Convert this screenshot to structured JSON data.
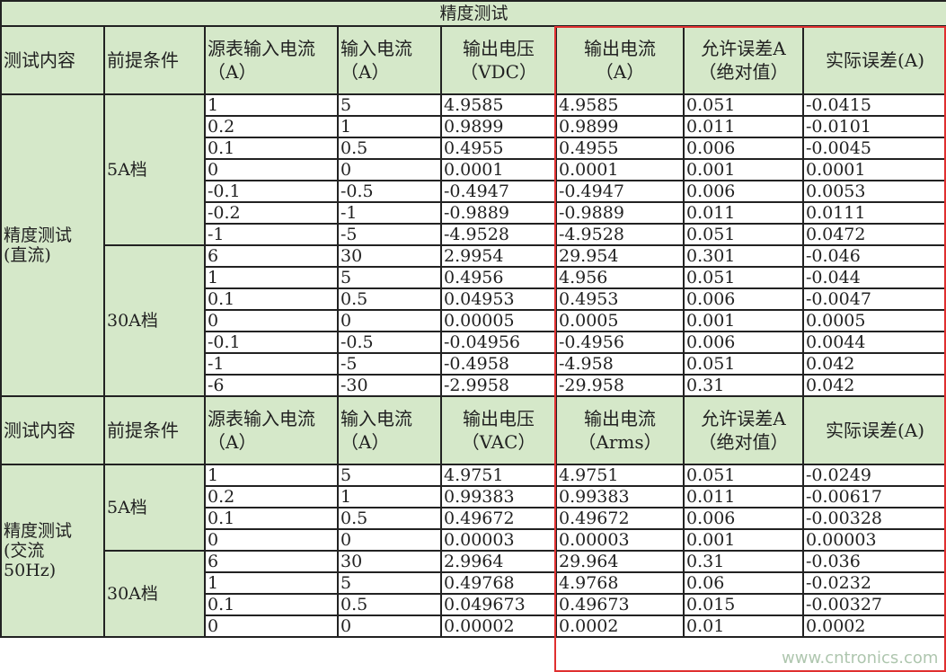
{
  "title": "精度测试",
  "header_dc": [
    "测试内容",
    "前提条件",
    "源表输入电流\n（A）",
    "输入电流\n（A）",
    "输出电压\n（VDC）",
    "输出电流\n（A）",
    "允许误差A\n（绝对值）",
    "实际误差(A)"
  ],
  "header_ac": [
    "测试内容",
    "前提条件",
    "源表输入电流\n（A）",
    "输入电流\n（A）",
    "输出电压\n（VAC）",
    "输出电流\n（Arms）",
    "允许误差A\n（绝对值）",
    "实际误差(A)"
  ],
  "dc": {
    "label": "精度测试\n(直流)",
    "groups": [
      {
        "label": "5A档",
        "rows": [
          [
            "1",
            "5",
            "4.9585",
            "4.9585",
            "0.051",
            "-0.0415"
          ],
          [
            "0.2",
            "1",
            "0.9899",
            "0.9899",
            "0.011",
            "-0.0101"
          ],
          [
            "0.1",
            "0.5",
            "0.4955",
            "0.4955",
            "0.006",
            "-0.0045"
          ],
          [
            "0",
            "0",
            "0.0001",
            "0.0001",
            "0.001",
            "0.0001"
          ],
          [
            "-0.1",
            "-0.5",
            "-0.4947",
            "-0.4947",
            "0.006",
            "0.0053"
          ],
          [
            "-0.2",
            "-1",
            "-0.9889",
            "-0.9889",
            "0.011",
            "0.0111"
          ],
          [
            "-1",
            "-5",
            "-4.9528",
            "-4.9528",
            "0.051",
            "0.0472"
          ]
        ]
      },
      {
        "label": "30A档",
        "rows": [
          [
            "6",
            "30",
            "2.9954",
            "29.954",
            "0.301",
            "-0.046"
          ],
          [
            "1",
            "5",
            "0.4956",
            "4.956",
            "0.051",
            "-0.044"
          ],
          [
            "0.1",
            "0.5",
            "0.04953",
            "0.4953",
            "0.006",
            "-0.0047"
          ],
          [
            "0",
            "0",
            "0.00005",
            "0.0005",
            "0.001",
            "0.0005"
          ],
          [
            "-0.1",
            "-0.5",
            "-0.04956",
            "-0.4956",
            "0.006",
            "0.0044"
          ],
          [
            "-1",
            "-5",
            "-0.4958",
            "-4.958",
            "0.051",
            "0.042"
          ],
          [
            "-6",
            "-30",
            "-2.9958",
            "-29.958",
            "0.31",
            "0.042"
          ]
        ]
      }
    ]
  },
  "ac": {
    "label": "精度测试\n(交流\n50Hz)",
    "groups": [
      {
        "label": "5A档",
        "rows": [
          [
            "1",
            "5",
            "4.9751",
            "4.9751",
            "0.051",
            "-0.0249"
          ],
          [
            "0.2",
            "1",
            "0.99383",
            "0.99383",
            "0.011",
            "-0.00617"
          ],
          [
            "0.1",
            "0.5",
            "0.49672",
            "0.49672",
            "0.006",
            "-0.00328"
          ],
          [
            "0",
            "0",
            "0.00003",
            "0.00003",
            "0.001",
            "0.00003"
          ]
        ]
      },
      {
        "label": "30A档",
        "rows": [
          [
            "6",
            "30",
            "2.9964",
            "29.964",
            "0.31",
            "-0.036"
          ],
          [
            "1",
            "5",
            "0.49768",
            "4.9768",
            "0.06",
            "-0.0232"
          ],
          [
            "0.1",
            "0.5",
            "0.049673",
            "0.49673",
            "0.015",
            "-0.00327"
          ],
          [
            "0",
            "0",
            "0.00002",
            "0.0002",
            "0.01",
            "0.0002"
          ]
        ]
      }
    ]
  },
  "watermark": "www.cntronics.com"
}
